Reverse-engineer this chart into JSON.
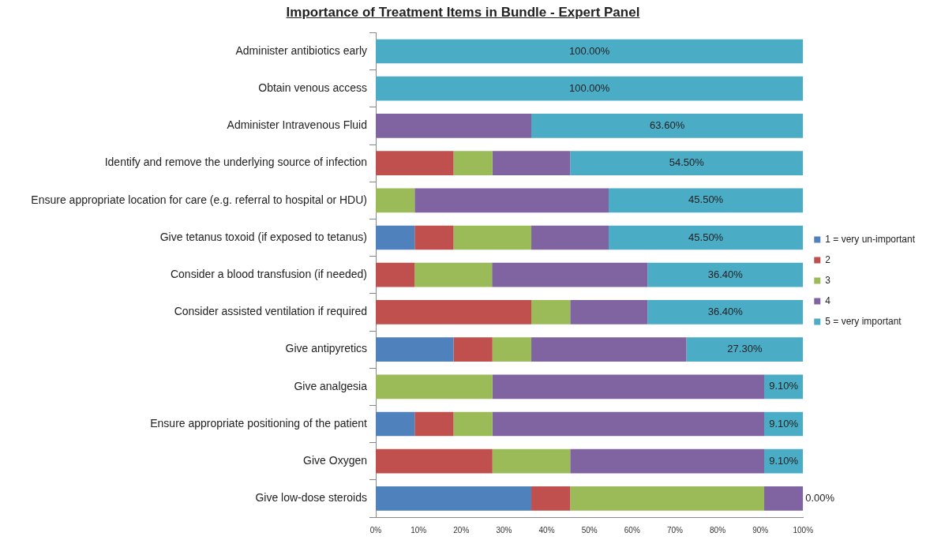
{
  "chart_data": {
    "type": "bar",
    "title": "Importance of Treatment Items in Bundle - Expert Panel",
    "orientation": "horizontal",
    "stacked": true,
    "legend": "right",
    "grid": false,
    "categories": [
      "Administer antibiotics early",
      "Obtain venous access",
      "Administer Intravenous Fluid",
      "Identify and remove the underlying source of infection",
      "Ensure appropriate location for care (e.g. referral to hospital or HDU)",
      "Give tetanus toxoid (if exposed to tetanus)",
      "Consider a blood transfusion (if needed)",
      "Consider assisted ventilation if required",
      "Give antipyretics",
      "Give analgesia",
      "Ensure appropriate positioning of the patient",
      "Give Oxygen",
      "Give low-dose steroids"
    ],
    "xlim": [
      0,
      100
    ],
    "xticks": [
      {
        "value": 0,
        "label": "0%"
      },
      {
        "value": 10,
        "label": "10%"
      },
      {
        "value": 20,
        "label": "20%"
      },
      {
        "value": 30,
        "label": "30%"
      },
      {
        "value": 40,
        "label": "40%"
      },
      {
        "value": 50,
        "label": "50%"
      },
      {
        "value": 60,
        "label": "60%"
      },
      {
        "value": 70,
        "label": "70%"
      },
      {
        "value": 80,
        "label": "80%"
      },
      {
        "value": 90,
        "label": "90%"
      },
      {
        "value": 100,
        "label": "100%"
      }
    ],
    "series": [
      {
        "name": "1 = very un-important",
        "color": "#4f81bd",
        "values": [
          0,
          0,
          0,
          0,
          0,
          9.1,
          0,
          0,
          18.2,
          0,
          9.1,
          0,
          36.4
        ]
      },
      {
        "name": "2",
        "color": "#c0504d",
        "values": [
          0,
          0,
          0,
          18.2,
          0,
          9.1,
          9.1,
          36.4,
          9.1,
          0,
          9.1,
          27.3,
          9.1
        ]
      },
      {
        "name": "3",
        "color": "#9bbb59",
        "values": [
          0,
          0,
          0,
          9.1,
          9.1,
          18.2,
          18.1,
          9.1,
          9.1,
          27.3,
          9.1,
          18.2,
          45.4
        ]
      },
      {
        "name": "4",
        "color": "#8064a2",
        "values": [
          0,
          0,
          36.4,
          18.2,
          45.4,
          18.1,
          36.4,
          18.1,
          36.3,
          63.6,
          63.6,
          45.4,
          9.1
        ]
      },
      {
        "name": "5 = very important",
        "color": "#4bacc6",
        "values": [
          100,
          100,
          63.6,
          54.5,
          45.5,
          45.5,
          36.4,
          36.4,
          27.3,
          9.1,
          9.1,
          9.1,
          0
        ],
        "value_labels": [
          "100.00%",
          "100.00%",
          "63.60%",
          "54.50%",
          "45.50%",
          "45.50%",
          "36.40%",
          "36.40%",
          "27.30%",
          "9.10%",
          "9.10%",
          "9.10%",
          "0.00%"
        ]
      }
    ]
  }
}
